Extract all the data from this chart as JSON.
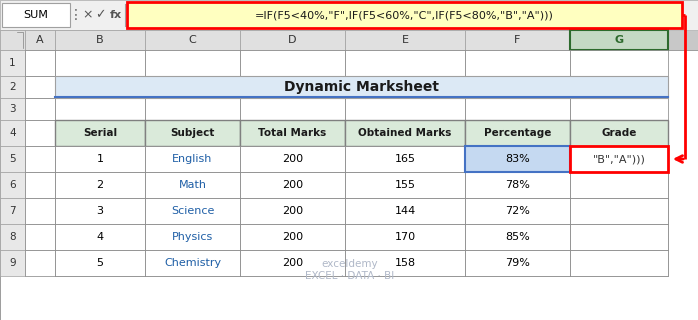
{
  "title": "Dynamic Marksheet",
  "formula_text": "=IF(F5<40%,\"F\",IF(F5<60%,\"C\",IF(F5<80%,\"B\",\"A\")))",
  "name_box": "SUM",
  "col_headers": [
    "A",
    "B",
    "C",
    "D",
    "E",
    "F",
    "G"
  ],
  "table_headers": [
    "Serial",
    "Subject",
    "Total Marks",
    "Obtained Marks",
    "Percentage",
    "Grade"
  ],
  "table_data": [
    [
      1,
      "English",
      200,
      165,
      "83%",
      "\"B\",\"A\")))"
    ],
    [
      2,
      "Math",
      200,
      155,
      "78%",
      ""
    ],
    [
      3,
      "Science",
      200,
      144,
      "72%",
      ""
    ],
    [
      4,
      "Physics",
      200,
      170,
      "85%",
      ""
    ],
    [
      5,
      "Chemistry",
      200,
      158,
      "79%",
      ""
    ]
  ],
  "title_bg": "#dce9f5",
  "table_header_bg": "#daeada",
  "pct_cell_bg": "#c5d9f1",
  "pct_cell_border": "#4472c4",
  "grade_cell_border": "#ff0000",
  "col_hdr_bg": "#e0e0e0",
  "col_g_hdr_bg": "#c5d9c5",
  "col_g_hdr_text": "#2d6a2d",
  "row_hdr_bg": "#e8e8e8",
  "cell_bg": "#ffffff",
  "formula_bg": "#ffffc0",
  "formula_border": "#ff0000",
  "arrow_color": "#ff0000",
  "subject_color": "#1f5fa6",
  "grid_color": "#808080",
  "bg_color": "#c8c8c8",
  "bar_bg": "#f0f0f0",
  "watermark_color": "#b0b8c8",
  "watermark": "exceldemy\nEXCEL · DATA · BI"
}
